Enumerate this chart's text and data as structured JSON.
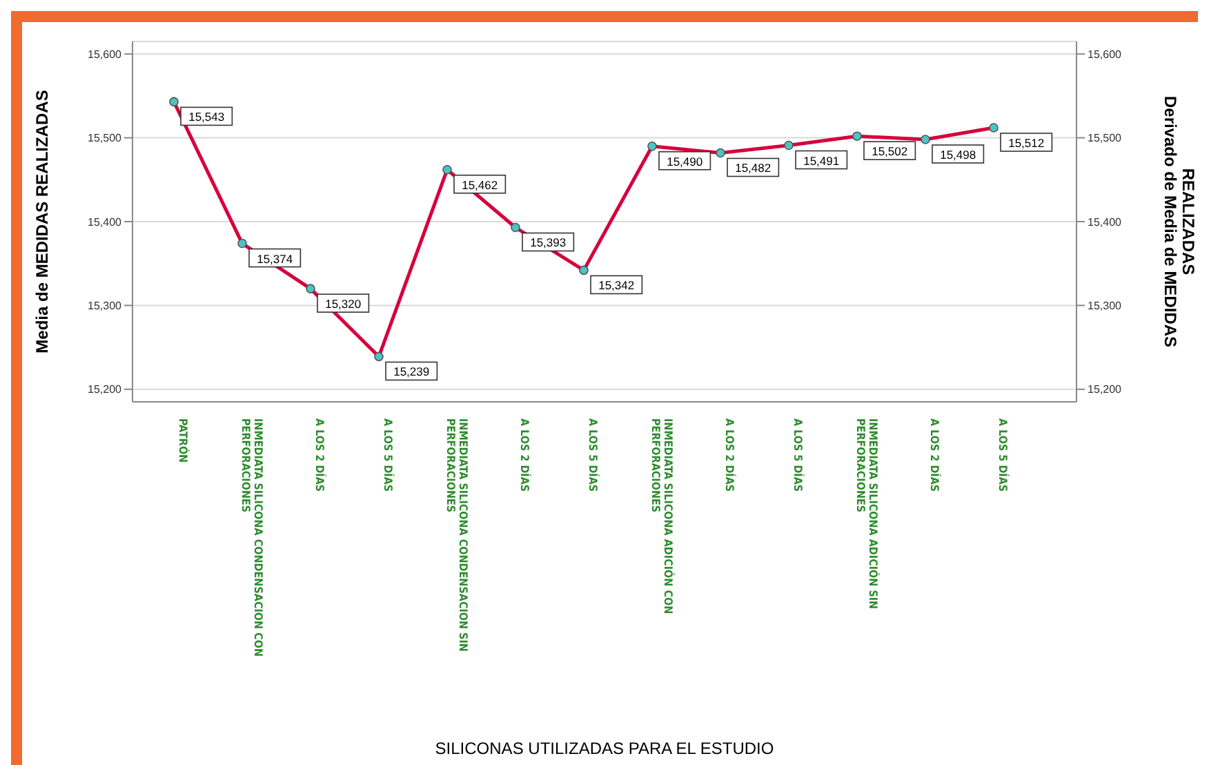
{
  "chart_data": {
    "type": "line",
    "xlabel": "SILICONAS UTILIZADAS PARA EL ESTUDIO",
    "ylabel": "Media de MEDIDAS REALIZADAS",
    "y2label": "Derivado de Media de MEDIDAS REALIZADAS",
    "categories": [
      "PATRÓN",
      "INMEDIATA SILICONA CONDENSACION CON PERFORACIONES",
      "A LOS 2 DÍAS",
      "A LOS 5 DÍAS",
      "INMEDIATA SILICONA CONDENSACION SIN PERFORACIONES",
      "A LOS 2 DÍAS",
      "A LOS 5 DÍAS",
      "INMEDIATA SILICONA ADICIÓN CON PERFORACIONES",
      "A LOS 2 DÍAS",
      "A LOS 5 DÍAS",
      "INMEDIATA SILICONA ADICIÓN SIN PERFORACIONES",
      "A LOS 2 DÍAS",
      "A LOS 5 DÍAS"
    ],
    "series": [
      {
        "color": "#d6003c",
        "values": [
          15543,
          15374,
          15320,
          15239,
          15462,
          15393,
          15342,
          15490,
          15482,
          15491,
          15502,
          15498,
          15512
        ],
        "value_labels": [
          "15,543",
          "15,374",
          "15,320",
          "15,239",
          "15,462",
          "15,393",
          "15,342",
          "15,490",
          "15,482",
          "15,491",
          "15,502",
          "15,498",
          "15,512"
        ]
      }
    ],
    "ylim": [
      15185,
      15615
    ],
    "yticks": [
      {
        "value": 15200,
        "label": "15,200"
      },
      {
        "value": 15300,
        "label": "15,300"
      },
      {
        "value": 15400,
        "label": "15,400"
      },
      {
        "value": 15500,
        "label": "15,500"
      },
      {
        "value": 15600,
        "label": "15,600"
      }
    ],
    "y2lim": [
      15185,
      15615
    ],
    "y2ticks": [
      {
        "value": 15200,
        "label": "15,200"
      },
      {
        "value": 15300,
        "label": "15,300"
      },
      {
        "value": 15400,
        "label": "15,400"
      },
      {
        "value": 15500,
        "label": "15,500"
      },
      {
        "value": 15600,
        "label": "15,600"
      }
    ],
    "grid": "y",
    "marker": "circle",
    "line_style": "solid",
    "legend": false
  }
}
